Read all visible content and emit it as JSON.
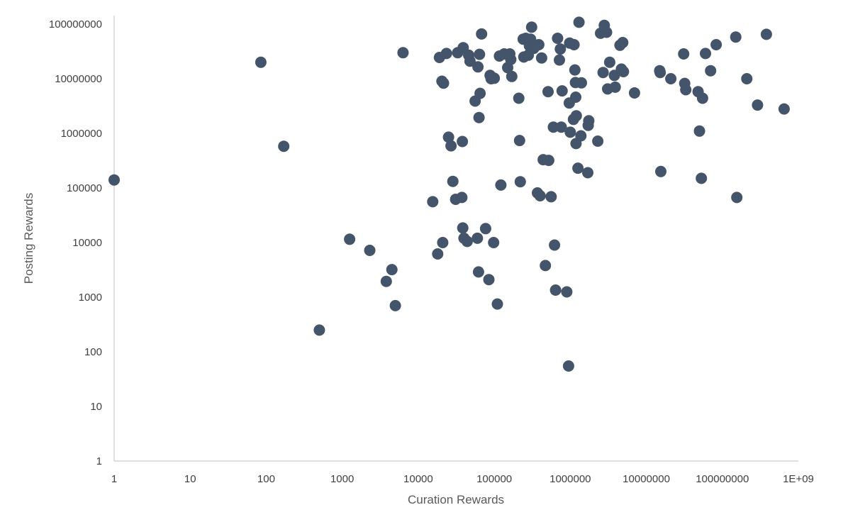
{
  "chart_data": {
    "type": "scatter",
    "xlabel": "Curation Rewards",
    "ylabel": "Posting Rewards",
    "x_scale": "log10",
    "y_scale": "log10",
    "xlim": [
      1,
      1000000000
    ],
    "ylim": [
      1,
      100000000
    ],
    "x_ticks": [
      "1",
      "10",
      "100",
      "1000",
      "10000",
      "100000",
      "1000000",
      "10000000",
      "100000000",
      "1E+09"
    ],
    "y_ticks": [
      "1",
      "10",
      "100",
      "1000",
      "10000",
      "100000",
      "1000000",
      "10000000",
      "100000000"
    ],
    "grid": false,
    "legend": "none",
    "marker_color": "#44546a",
    "points": [
      [
        1,
        140000
      ],
      [
        85,
        20000000
      ],
      [
        170,
        580000
      ],
      [
        500,
        250
      ],
      [
        1250,
        11500
      ],
      [
        2300,
        7200
      ],
      [
        3800,
        1950
      ],
      [
        4500,
        3200
      ],
      [
        5000,
        700
      ],
      [
        6300,
        30000000
      ],
      [
        15500,
        56000
      ],
      [
        18000,
        6200
      ],
      [
        19000,
        24500000
      ],
      [
        20500,
        9000000
      ],
      [
        21000,
        10000
      ],
      [
        21500,
        8300000
      ],
      [
        23500,
        29000000
      ],
      [
        25000,
        850000
      ],
      [
        27000,
        590000
      ],
      [
        28500,
        132000
      ],
      [
        31000,
        62000
      ],
      [
        33000,
        30000000
      ],
      [
        37500,
        67000
      ],
      [
        38000,
        710000
      ],
      [
        38500,
        18500
      ],
      [
        39000,
        37000000
      ],
      [
        40000,
        12000
      ],
      [
        44000,
        10500
      ],
      [
        46000,
        27000000
      ],
      [
        48000,
        21000000
      ],
      [
        56000,
        3900000
      ],
      [
        60000,
        12000
      ],
      [
        61000,
        16500000
      ],
      [
        62000,
        2900
      ],
      [
        63000,
        1950000
      ],
      [
        64000,
        28000000
      ],
      [
        65000,
        5400000
      ],
      [
        68000,
        66000000
      ],
      [
        77000,
        18000
      ],
      [
        85000,
        2100
      ],
      [
        88000,
        11500000
      ],
      [
        91000,
        10000000
      ],
      [
        98000,
        10000
      ],
      [
        100000,
        10200000
      ],
      [
        110000,
        750
      ],
      [
        117000,
        26000000
      ],
      [
        122000,
        113000
      ],
      [
        135000,
        28500000
      ],
      [
        150000,
        16000000
      ],
      [
        160000,
        28500000
      ],
      [
        165000,
        22500000
      ],
      [
        170000,
        11000000
      ],
      [
        210000,
        4400000
      ],
      [
        215000,
        740000
      ],
      [
        220000,
        130000
      ],
      [
        240000,
        53000000
      ],
      [
        245000,
        25000000
      ],
      [
        260000,
        55000000
      ],
      [
        280000,
        27000000
      ],
      [
        290000,
        40000000
      ],
      [
        300000,
        53000000
      ],
      [
        310000,
        88000000
      ],
      [
        330000,
        36000000
      ],
      [
        370000,
        81000
      ],
      [
        385000,
        42000000
      ],
      [
        400000,
        72000
      ],
      [
        420000,
        24000000
      ],
      [
        440000,
        330000
      ],
      [
        470000,
        3800
      ],
      [
        510000,
        5800000
      ],
      [
        520000,
        320000
      ],
      [
        560000,
        69000
      ],
      [
        600000,
        1300000
      ],
      [
        620000,
        9000
      ],
      [
        640000,
        1350
      ],
      [
        680000,
        55000000
      ],
      [
        720000,
        22000000
      ],
      [
        740000,
        35000000
      ],
      [
        760000,
        1300000
      ],
      [
        780000,
        6000000
      ],
      [
        900000,
        1250
      ],
      [
        950000,
        55
      ],
      [
        970000,
        3600000
      ],
      [
        980000,
        45000000
      ],
      [
        1000000,
        1050000
      ],
      [
        1100000,
        1800000
      ],
      [
        1120000,
        42000000
      ],
      [
        1150000,
        14500000
      ],
      [
        1170000,
        8500000
      ],
      [
        1180000,
        4600000
      ],
      [
        1190000,
        650000
      ],
      [
        1200000,
        2100000
      ],
      [
        1260000,
        230000
      ],
      [
        1300000,
        108000000
      ],
      [
        1380000,
        900000
      ],
      [
        1400000,
        8400000
      ],
      [
        1700000,
        190000
      ],
      [
        1720000,
        1400000
      ],
      [
        1750000,
        1700000
      ],
      [
        2300000,
        720000
      ],
      [
        2500000,
        68000000
      ],
      [
        2700000,
        13000000
      ],
      [
        2800000,
        95000000
      ],
      [
        3000000,
        71000000
      ],
      [
        3100000,
        6500000
      ],
      [
        3300000,
        20000000
      ],
      [
        3800000,
        11500000
      ],
      [
        3900000,
        7000000
      ],
      [
        4500000,
        41000000
      ],
      [
        4700000,
        15000000
      ],
      [
        4900000,
        46000000
      ],
      [
        5000000,
        13500000
      ],
      [
        7000000,
        5500000
      ],
      [
        15000000,
        14000000
      ],
      [
        15200000,
        13000000
      ],
      [
        15500000,
        200000
      ],
      [
        21000000,
        10000000
      ],
      [
        31000000,
        28500000
      ],
      [
        32000000,
        8200000
      ],
      [
        33000000,
        6300000
      ],
      [
        48000000,
        5800000
      ],
      [
        50000000,
        1100000
      ],
      [
        53000000,
        150000
      ],
      [
        55000000,
        4400000
      ],
      [
        60000000,
        29000000
      ],
      [
        70000000,
        14000000
      ],
      [
        83000000,
        42000000
      ],
      [
        150000000,
        58000000
      ],
      [
        155000000,
        67000
      ],
      [
        210000000,
        10000000
      ],
      [
        290000000,
        3300000
      ],
      [
        380000000,
        65000000
      ],
      [
        650000000,
        2800000
      ]
    ]
  }
}
